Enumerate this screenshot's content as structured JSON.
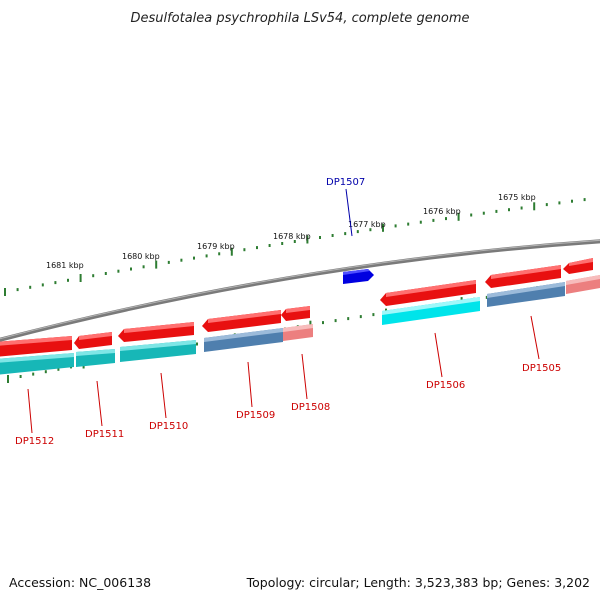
{
  "title": "Desulfotalea psychrophila LSv54, complete genome",
  "footer": {
    "accession": "Accession: NC_006138",
    "summary": "Topology: circular; Length: 3,523,383 bp; Genes: 3,202"
  },
  "colors": {
    "backbone": "#7a7a7a",
    "tick": "#2e7d32",
    "gene_red": "#e81010",
    "gene_blue": "#0000e0",
    "gene_cyan": "#00d2d8",
    "gene_teal": "#17b7b7",
    "gene_steelblue": "#4f7fae",
    "gene_pink": "#ec7f7f",
    "label_red": "#cc0000",
    "label_blue": "#0000aa"
  },
  "scale_labels": [
    "1681 kbp",
    "1680 kbp",
    "1679 kbp",
    "1678 kbp",
    "1677 kbp",
    "1676 kbp",
    "1675 kbp"
  ],
  "gene_labels": [
    {
      "text": "DP1512",
      "color": "red"
    },
    {
      "text": "DP1511",
      "color": "red"
    },
    {
      "text": "DP1510",
      "color": "red"
    },
    {
      "text": "DP1509",
      "color": "red"
    },
    {
      "text": "DP1508",
      "color": "red"
    },
    {
      "text": "DP1507",
      "color": "blue"
    },
    {
      "text": "DP1506",
      "color": "red"
    },
    {
      "text": "DP1505",
      "color": "red"
    }
  ]
}
